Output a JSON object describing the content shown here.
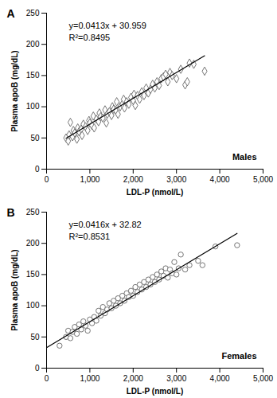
{
  "chart_data": [
    {
      "type": "scatter",
      "panel": "A",
      "label": "Males",
      "xlabel": "LDL-P (nmol/L)",
      "ylabel": "Plasma apoB (mg/dL)",
      "annotations": [
        "y=0.0413x + 30.959",
        "R²=0.8495"
      ],
      "marker": "diamond",
      "color": "#666666",
      "xlim": [
        0,
        5000
      ],
      "xticks": [
        0,
        {
          "value": 1000,
          "label": "1,000"
        },
        {
          "value": 2000,
          "label": "2,000"
        },
        {
          "value": 3000,
          "label": "3,000"
        },
        {
          "value": 4000,
          "label": "4,000"
        },
        {
          "value": 5000,
          "label": "5,000"
        }
      ],
      "ylim": [
        0,
        250
      ],
      "yticks": [
        0,
        50,
        100,
        150,
        200,
        250
      ],
      "x": [
        450,
        500,
        520,
        550,
        600,
        620,
        650,
        700,
        720,
        750,
        800,
        820,
        850,
        900,
        950,
        980,
        1000,
        1050,
        1080,
        1100,
        1150,
        1200,
        1220,
        1250,
        1300,
        1350,
        1380,
        1400,
        1450,
        1500,
        1520,
        1550,
        1600,
        1620,
        1650,
        1700,
        1750,
        1780,
        1800,
        1850,
        1900,
        1950,
        2000,
        2020,
        2050,
        2100,
        2150,
        2200,
        2250,
        2300,
        2350,
        2400,
        2450,
        2500,
        2550,
        2600,
        2650,
        2700,
        2750,
        2800,
        2850,
        2900,
        3000,
        3100,
        3200,
        3250,
        3300,
        3400,
        3650
      ],
      "values": [
        50,
        45,
        55,
        75,
        52,
        62,
        58,
        48,
        66,
        60,
        64,
        54,
        72,
        68,
        62,
        78,
        74,
        70,
        85,
        66,
        80,
        76,
        90,
        84,
        82,
        95,
        74,
        88,
        92,
        86,
        100,
        96,
        94,
        108,
        88,
        100,
        104,
        112,
        98,
        108,
        104,
        115,
        110,
        120,
        102,
        118,
        112,
        124,
        118,
        130,
        122,
        128,
        136,
        130,
        140,
        134,
        145,
        148,
        152,
        140,
        155,
        150,
        145,
        160,
        135,
        140,
        170,
        168,
        157
      ],
      "trendline": {
        "x": [
          450,
          3650
        ],
        "values": [
          49.5,
          181.7
        ],
        "color": "#000000"
      }
    },
    {
      "type": "scatter",
      "panel": "B",
      "label": "Females",
      "xlabel": "LDL-P (nmol/L)",
      "ylabel": "Plasma apoB (mg/dL)",
      "annotations": [
        "y=0.0416x + 32.82",
        "R²=0.8531"
      ],
      "marker": "circle",
      "color": "#666666",
      "xlim": [
        0,
        5000
      ],
      "xticks": [
        0,
        {
          "value": 1000,
          "label": "1,000"
        },
        {
          "value": 2000,
          "label": "2,000"
        },
        {
          "value": 3000,
          "label": "3,000"
        },
        {
          "value": 4000,
          "label": "4,000"
        },
        {
          "value": 5000,
          "label": "5,000"
        }
      ],
      "ylim": [
        0,
        250
      ],
      "yticks": [
        0,
        50,
        100,
        150,
        200,
        250
      ],
      "x": [
        300,
        450,
        500,
        550,
        600,
        650,
        700,
        750,
        800,
        850,
        900,
        950,
        1000,
        1050,
        1100,
        1150,
        1200,
        1250,
        1300,
        1350,
        1400,
        1450,
        1500,
        1550,
        1600,
        1650,
        1700,
        1750,
        1800,
        1850,
        1900,
        1950,
        2000,
        2050,
        2100,
        2150,
        2200,
        2250,
        2300,
        2350,
        2400,
        2450,
        2500,
        2550,
        2600,
        2650,
        2700,
        2750,
        2800,
        2850,
        2900,
        2950,
        3000,
        3050,
        3100,
        3200,
        3300,
        3500,
        3600,
        3900,
        4400
      ],
      "values": [
        36,
        50,
        60,
        48,
        58,
        66,
        55,
        70,
        62,
        75,
        68,
        60,
        78,
        72,
        82,
        76,
        92,
        84,
        98,
        88,
        94,
        104,
        96,
        108,
        100,
        112,
        104,
        116,
        108,
        120,
        114,
        124,
        116,
        130,
        122,
        134,
        126,
        138,
        130,
        142,
        134,
        146,
        138,
        150,
        142,
        155,
        148,
        160,
        145,
        158,
        152,
        170,
        150,
        160,
        182,
        158,
        165,
        172,
        165,
        195,
        197
      ],
      "trendline": {
        "x": [
          0,
          4400
        ],
        "values": [
          32.8,
          215.9
        ],
        "color": "#000000"
      }
    }
  ]
}
